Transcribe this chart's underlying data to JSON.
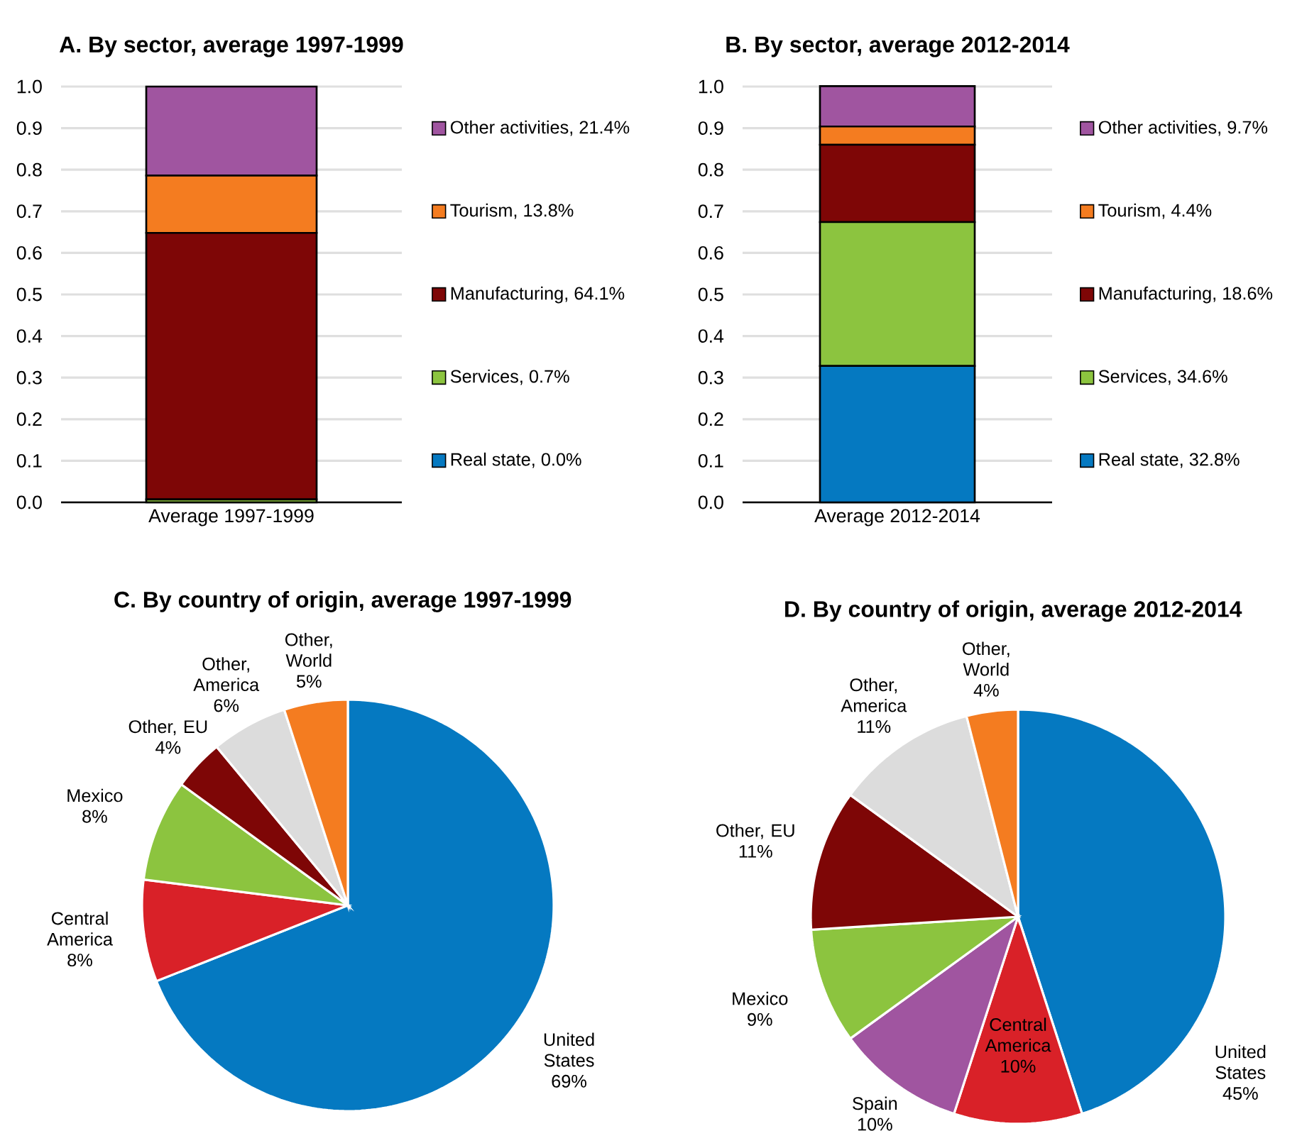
{
  "chart_data": [
    {
      "type": "bar",
      "stacked": true,
      "title": "A. By sector, average 1997-1999",
      "categories": [
        "Average 1997-1999"
      ],
      "series": [
        {
          "name": "Real state, 0.0%",
          "color": "#0579c1",
          "values": [
            0.0
          ]
        },
        {
          "name": "Services, 0.7%",
          "color": "#8cc43f",
          "values": [
            0.007
          ]
        },
        {
          "name": "Manufacturing, 64.1%",
          "color": "#7e0606",
          "values": [
            0.641
          ]
        },
        {
          "name": "Tourism, 13.8%",
          "color": "#f47c20",
          "values": [
            0.138
          ]
        },
        {
          "name": "Other activities, 21.4%",
          "color": "#a055a0",
          "values": [
            0.214
          ]
        }
      ],
      "ylim": [
        0,
        1
      ],
      "yticks": [
        {
          "value": 0,
          "label": "0.0"
        },
        {
          "value": 0.1,
          "label": "0.1"
        },
        {
          "value": 0.2,
          "label": "0.2"
        },
        {
          "value": 0.3,
          "label": "0.3"
        },
        {
          "value": 0.4,
          "label": "0.4"
        },
        {
          "value": 0.5,
          "label": "0.5"
        },
        {
          "value": 0.6,
          "label": "0.6"
        },
        {
          "value": 0.7,
          "label": "0.7"
        },
        {
          "value": 0.8,
          "label": "0.8"
        },
        {
          "value": 0.9,
          "label": "0.9"
        },
        {
          "value": 1,
          "label": "1.0"
        }
      ],
      "grid": "y",
      "legend": "right"
    },
    {
      "type": "bar",
      "stacked": true,
      "title": "B. By sector, average 2012-2014",
      "categories": [
        "Average 2012-2014"
      ],
      "series": [
        {
          "name": "Real state, 32.8%",
          "color": "#0579c1",
          "values": [
            0.328
          ]
        },
        {
          "name": "Services, 34.6%",
          "color": "#8cc43f",
          "values": [
            0.346
          ]
        },
        {
          "name": "Manufacturing, 18.6%",
          "color": "#7e0606",
          "values": [
            0.186
          ]
        },
        {
          "name": "Tourism, 4.4%",
          "color": "#f47c20",
          "values": [
            0.044
          ]
        },
        {
          "name": "Other activities, 9.7%",
          "color": "#a055a0",
          "values": [
            0.097
          ]
        }
      ],
      "ylim": [
        0,
        1
      ],
      "yticks": [
        {
          "value": 0,
          "label": "0.0"
        },
        {
          "value": 0.1,
          "label": "0.1"
        },
        {
          "value": 0.2,
          "label": "0.2"
        },
        {
          "value": 0.3,
          "label": "0.3"
        },
        {
          "value": 0.4,
          "label": "0.4"
        },
        {
          "value": 0.5,
          "label": "0.5"
        },
        {
          "value": 0.6,
          "label": "0.6"
        },
        {
          "value": 0.7,
          "label": "0.7"
        },
        {
          "value": 0.8,
          "label": "0.8"
        },
        {
          "value": 0.9,
          "label": "0.9"
        },
        {
          "value": 1,
          "label": "1.0"
        }
      ],
      "grid": "y",
      "legend": "right"
    },
    {
      "type": "pie",
      "title": "C. By country of origin, average 1997-1999",
      "categories": [
        "United States",
        "Central America",
        "Mexico",
        "Other, EU",
        "Other, America",
        "Other, World"
      ],
      "values": [
        69,
        8,
        8,
        4,
        6,
        5
      ],
      "value_labels": [
        "69%",
        "8%",
        "8%",
        "4%",
        "6%",
        "5%"
      ],
      "colors": [
        "#0579c1",
        "#d92128",
        "#8cc43f",
        "#7e0606",
        "#dcdcdc",
        "#f47c20"
      ]
    },
    {
      "type": "pie",
      "title": "D. By country of origin, average 2012-2014",
      "categories": [
        "United States",
        "Central America",
        "Spain",
        "Mexico",
        "Other, EU",
        "Other, America",
        "Other, World"
      ],
      "values": [
        45,
        10,
        10,
        9,
        11,
        11,
        4
      ],
      "value_labels": [
        "45%",
        "10%",
        "10%",
        "9%",
        "11%",
        "11%",
        "4%"
      ],
      "colors": [
        "#0579c1",
        "#d92128",
        "#a055a0",
        "#8cc43f",
        "#7e0606",
        "#dcdcdc",
        "#f47c20"
      ]
    }
  ]
}
